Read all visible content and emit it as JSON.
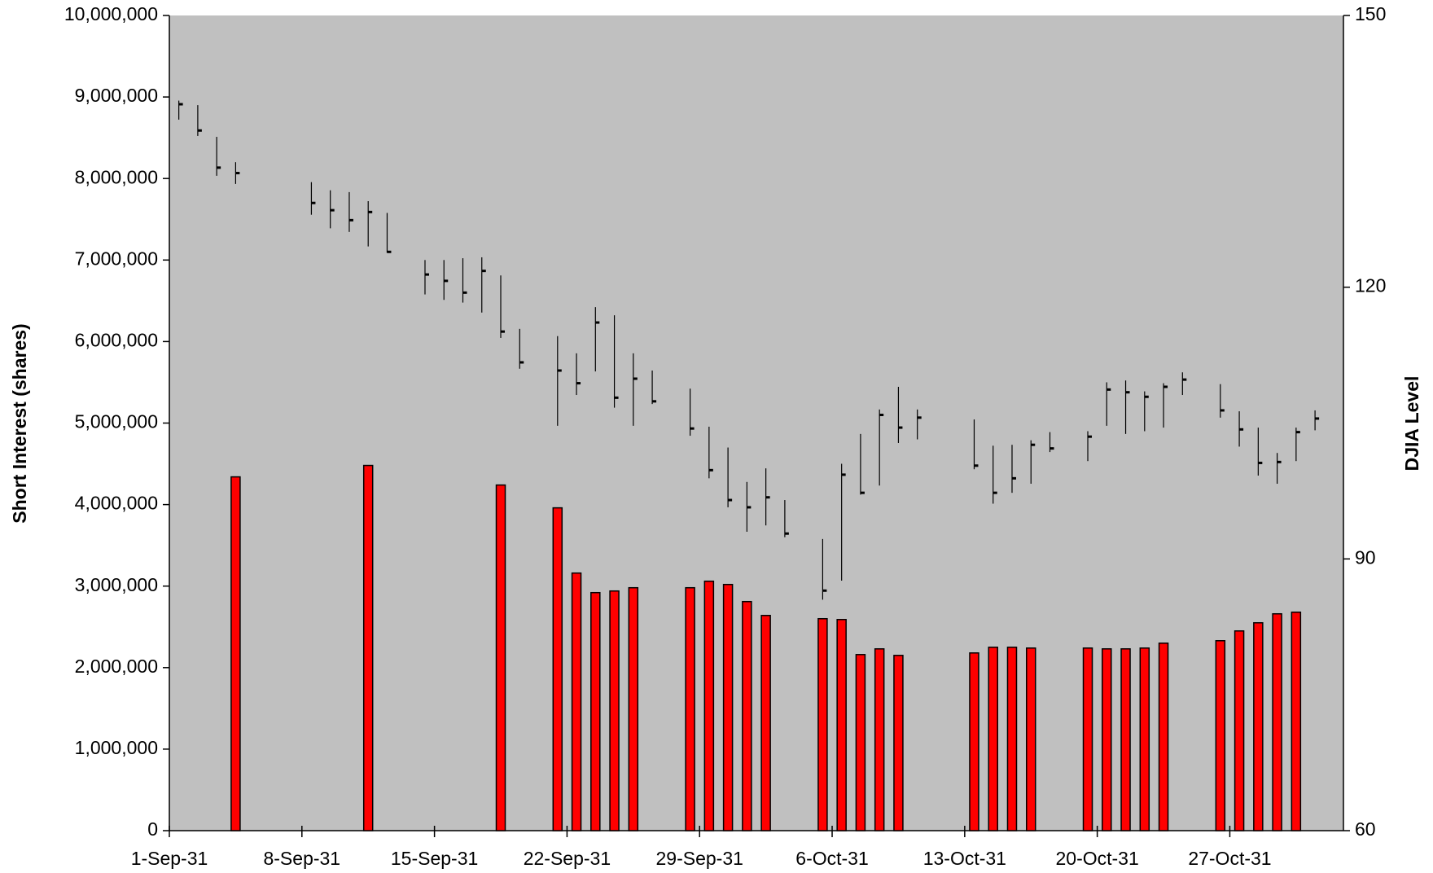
{
  "chart_data": {
    "type": "combo",
    "y_label": "Short Interest (shares)",
    "y2_label": "DJIA Level",
    "x": [
      "1931-09-01",
      "1931-09-02",
      "1931-09-03",
      "1931-09-04",
      "1931-09-08",
      "1931-09-09",
      "1931-09-10",
      "1931-09-11",
      "1931-09-12",
      "1931-09-14",
      "1931-09-15",
      "1931-09-16",
      "1931-09-17",
      "1931-09-18",
      "1931-09-19",
      "1931-09-21",
      "1931-09-22",
      "1931-09-23",
      "1931-09-24",
      "1931-09-25",
      "1931-09-26",
      "1931-09-28",
      "1931-09-29",
      "1931-09-30",
      "1931-10-01",
      "1931-10-02",
      "1931-10-03",
      "1931-10-05",
      "1931-10-06",
      "1931-10-07",
      "1931-10-08",
      "1931-10-09",
      "1931-10-10",
      "1931-10-13",
      "1931-10-14",
      "1931-10-15",
      "1931-10-16",
      "1931-10-17",
      "1931-10-19",
      "1931-10-20",
      "1931-10-21",
      "1931-10-22",
      "1931-10-23",
      "1931-10-24",
      "1931-10-26",
      "1931-10-27",
      "1931-10-28",
      "1931-10-29",
      "1931-10-30",
      "1931-10-31"
    ],
    "xlim": [
      "1931-09-01",
      "1931-11-02"
    ],
    "xticks": [
      {
        "value": "1931-09-01",
        "label": "1-Sep-31"
      },
      {
        "value": "1931-09-08",
        "label": "8-Sep-31"
      },
      {
        "value": "1931-09-15",
        "label": "15-Sep-31"
      },
      {
        "value": "1931-09-22",
        "label": "22-Sep-31"
      },
      {
        "value": "1931-09-29",
        "label": "29-Sep-31"
      },
      {
        "value": "1931-10-06",
        "label": "6-Oct-31"
      },
      {
        "value": "1931-10-13",
        "label": "13-Oct-31"
      },
      {
        "value": "1931-10-20",
        "label": "20-Oct-31"
      },
      {
        "value": "1931-10-27",
        "label": "27-Oct-31"
      }
    ],
    "ylim": [
      0,
      10000000
    ],
    "yticks": [
      0,
      {
        "value": 1000000,
        "label": "1,000,000"
      },
      {
        "value": 2000000,
        "label": "2,000,000"
      },
      {
        "value": 3000000,
        "label": "3,000,000"
      },
      {
        "value": 4000000,
        "label": "4,000,000"
      },
      {
        "value": 5000000,
        "label": "5,000,000"
      },
      {
        "value": 6000000,
        "label": "6,000,000"
      },
      {
        "value": 7000000,
        "label": "7,000,000"
      },
      {
        "value": 8000000,
        "label": "8,000,000"
      },
      {
        "value": 9000000,
        "label": "9,000,000"
      },
      {
        "value": 10000000,
        "label": "10,000,000"
      }
    ],
    "y2lim": [
      60,
      150
    ],
    "y2ticks": [
      60,
      90,
      120,
      150
    ],
    "series": [
      {
        "type": "bar",
        "color": "#ff0000",
        "values": [
          null,
          null,
          null,
          4340000,
          null,
          null,
          null,
          4480000,
          null,
          null,
          null,
          null,
          null,
          4240000,
          null,
          3960000,
          3160000,
          2920000,
          2940000,
          2980000,
          null,
          2980000,
          3060000,
          3020000,
          2810000,
          2640000,
          null,
          2600000,
          2590000,
          2160000,
          2230000,
          2150000,
          null,
          2180000,
          2250000,
          2250000,
          2240000,
          null,
          2240000,
          2230000,
          2230000,
          2240000,
          2300000,
          null,
          2330000,
          2450000,
          2550000,
          2660000,
          2680000,
          null
        ]
      },
      {
        "type": "hlc",
        "axis": "y2",
        "color": "#000000",
        "high": [
          140.6,
          140.1,
          136.6,
          133.8,
          131.6,
          130.7,
          130.5,
          129.5,
          128.2,
          123.0,
          123.0,
          123.2,
          123.3,
          121.3,
          115.4,
          114.6,
          112.7,
          117.8,
          116.9,
          112.7,
          110.8,
          108.8,
          104.6,
          102.3,
          98.5,
          100.0,
          96.5,
          92.2,
          100.5,
          103.8,
          106.5,
          109.0,
          106.5,
          105.4,
          102.5,
          102.6,
          103.1,
          104.0,
          104.1,
          109.5,
          109.7,
          108.5,
          109.4,
          110.6,
          109.3,
          106.3,
          104.5,
          101.7,
          104.5,
          106.4
        ],
        "low": [
          138.5,
          136.7,
          132.3,
          131.4,
          128.0,
          126.5,
          126.1,
          124.5,
          123.8,
          119.2,
          118.6,
          118.3,
          117.2,
          114.4,
          111.0,
          104.7,
          108.1,
          110.7,
          106.7,
          104.7,
          107.1,
          103.6,
          98.9,
          95.7,
          93.0,
          93.7,
          92.4,
          85.5,
          87.6,
          97.1,
          98.1,
          102.8,
          103.2,
          99.9,
          96.1,
          97.3,
          98.3,
          101.8,
          100.8,
          104.7,
          103.8,
          104.1,
          104.5,
          108.1,
          105.6,
          102.4,
          99.2,
          98.3,
          100.8,
          104.2
        ],
        "close": [
          140.2,
          137.3,
          133.2,
          132.6,
          129.3,
          128.5,
          127.4,
          128.3,
          123.9,
          121.4,
          120.7,
          119.4,
          121.8,
          115.1,
          111.7,
          110.8,
          109.4,
          116.1,
          107.8,
          109.9,
          107.4,
          104.4,
          99.8,
          96.5,
          95.7,
          96.8,
          92.8,
          86.5,
          99.3,
          97.3,
          105.9,
          104.5,
          105.6,
          100.3,
          97.3,
          98.9,
          102.6,
          102.2,
          103.5,
          108.7,
          108.4,
          107.9,
          109.0,
          109.8,
          106.4,
          104.3,
          100.6,
          100.7,
          104.0,
          105.5
        ]
      }
    ]
  }
}
